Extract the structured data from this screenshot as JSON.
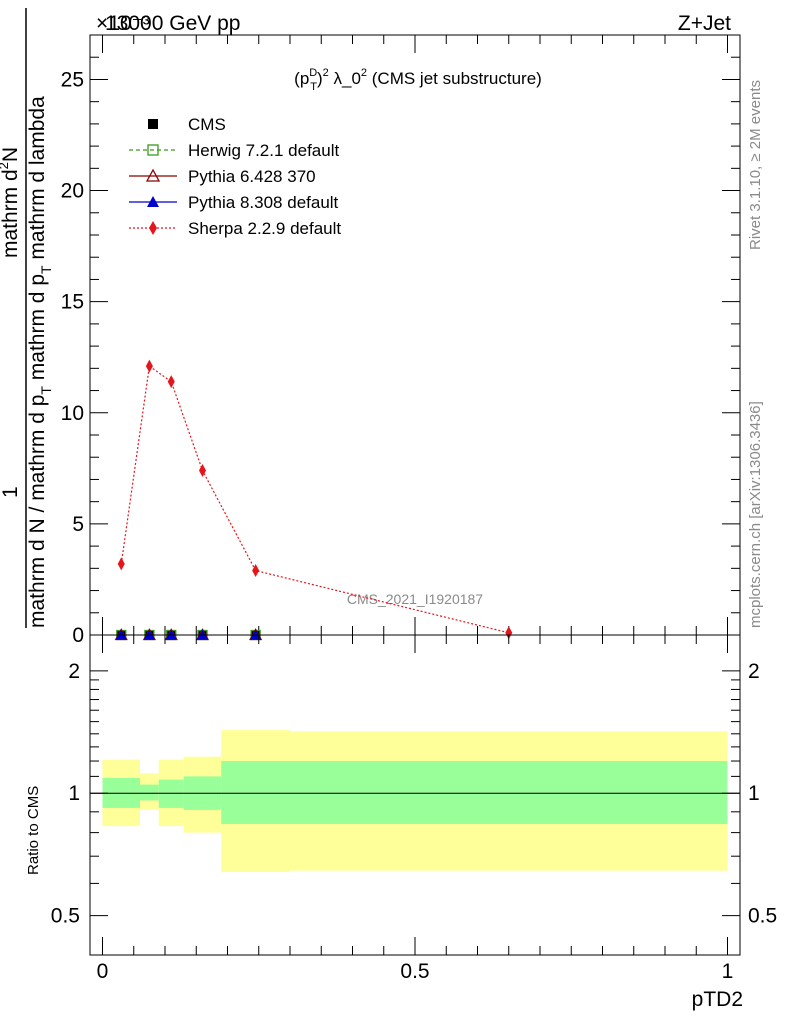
{
  "header": {
    "left": "13000 GeV pp",
    "right": "Z+Jet",
    "exponent": "×10⁻³"
  },
  "side_labels": {
    "rivet": "Rivet 3.1.10, ≥ 2M events",
    "mcplots": "mcplots.cern.ch [arXiv:1306.3436]"
  },
  "watermark": "CMS_2021_I1920187",
  "colors": {
    "herwig": "#3a9a1a",
    "pythia6": "#8b0000",
    "pythia8": "#0000cc",
    "sherpa": "#e8141b",
    "band_outer": "#ffff99",
    "band_inner": "#99ff99"
  },
  "chart_data": [
    {
      "type": "line",
      "title": "(p_T^D)^2 λ_0^2 (CMS jet substructure)",
      "title_parts": {
        "p": "(p",
        "sub": "T",
        "sup1": "D",
        "sup2": "2",
        "mid": ") λ_0",
        "end": " (CMS jet substructure)"
      },
      "ylabel_top": "1",
      "ylabel_den": "mathrm d N / mathrm d p_T mathrm d lambda",
      "ylabel_num": "mathrm d^2N",
      "ylabel_num_parts": {
        "a": "mathrm d",
        "b": "N"
      },
      "ylabel_den_parts": {
        "a": "mathrm d N / mathrm d p",
        "b": "T",
        "c": "mathrm d p",
        "d": "T",
        "e": " mathrm d lambda"
      },
      "ylim": [
        0,
        27
      ],
      "xlim": [
        -0.02,
        1.02
      ],
      "yticks": [
        "0",
        "5",
        "10",
        "15",
        "20",
        "25"
      ],
      "ytick_values": [
        0,
        5,
        10,
        15,
        20,
        25
      ],
      "legend_position": "top-left",
      "series": [
        {
          "name": "CMS",
          "marker": "square-filled",
          "x": [
            0.03,
            0.075,
            0.11,
            0.16,
            0.245
          ],
          "y": [
            0,
            0,
            0,
            0,
            0
          ]
        },
        {
          "name": "Herwig 7.2.1 default",
          "marker": "square-open",
          "x": [
            0.03,
            0.075,
            0.11,
            0.16,
            0.245
          ],
          "y": [
            0,
            0,
            0,
            0,
            0
          ]
        },
        {
          "name": "Pythia 6.428 370",
          "marker": "triangle-open",
          "x": [
            0.03,
            0.075,
            0.11,
            0.16,
            0.245
          ],
          "y": [
            0,
            0,
            0,
            0,
            0
          ]
        },
        {
          "name": "Pythia 8.308 default",
          "marker": "triangle-filled",
          "x": [
            0.03,
            0.075,
            0.11,
            0.16,
            0.245
          ],
          "y": [
            0,
            0,
            0,
            0,
            0
          ]
        },
        {
          "name": "Sherpa 2.2.9 default",
          "marker": "diamond",
          "x": [
            0.03,
            0.075,
            0.11,
            0.16,
            0.245,
            0.65
          ],
          "y": [
            3.2,
            12.1,
            11.4,
            7.4,
            2.9,
            0.1
          ]
        }
      ]
    },
    {
      "type": "area",
      "ylabel": "Ratio to CMS",
      "xlabel": "pTD2",
      "xticks": [
        "0",
        "0.5",
        "1"
      ],
      "xtick_values": [
        0,
        0.5,
        1
      ],
      "yticks": [
        "0.5",
        "1",
        "2"
      ],
      "ytick_values": [
        0.5,
        1,
        2
      ],
      "ylim": [
        0.4,
        2.45
      ],
      "log_y": true,
      "bins": [
        {
          "x0": 0.0,
          "x1": 0.06,
          "inner": [
            0.92,
            1.09
          ],
          "outer": [
            0.83,
            1.21
          ]
        },
        {
          "x0": 0.06,
          "x1": 0.09,
          "inner": [
            0.96,
            1.05
          ],
          "outer": [
            0.91,
            1.12
          ]
        },
        {
          "x0": 0.09,
          "x1": 0.13,
          "inner": [
            0.92,
            1.08
          ],
          "outer": [
            0.83,
            1.21
          ]
        },
        {
          "x0": 0.13,
          "x1": 0.19,
          "inner": [
            0.91,
            1.1
          ],
          "outer": [
            0.8,
            1.23
          ]
        },
        {
          "x0": 0.19,
          "x1": 0.3,
          "inner": [
            0.84,
            1.2
          ],
          "outer": [
            0.64,
            1.43
          ]
        },
        {
          "x0": 0.3,
          "x1": 1.0,
          "inner": [
            0.84,
            1.2
          ],
          "outer": [
            0.645,
            1.42
          ]
        }
      ]
    }
  ]
}
